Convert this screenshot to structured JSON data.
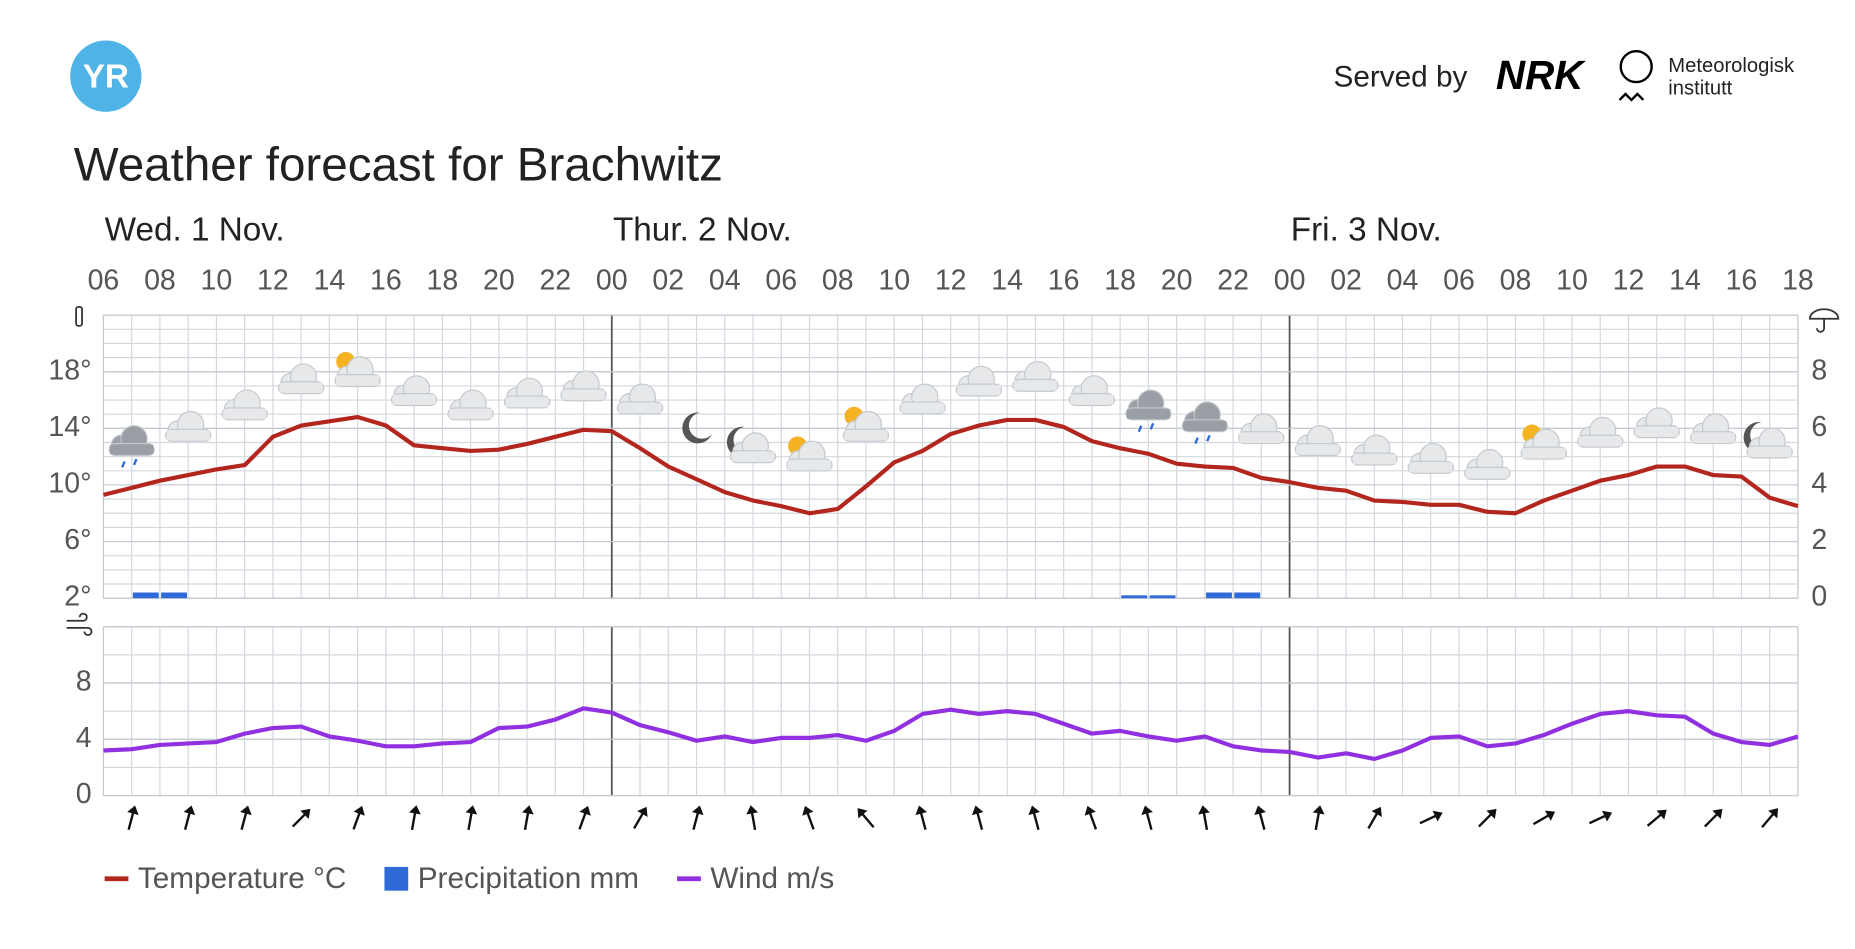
{
  "header": {
    "logo": "YR",
    "served_by": "Served by",
    "partner": "NRK",
    "institute": [
      "Meteorologisk",
      "institutt"
    ]
  },
  "chart_data": {
    "type": "line",
    "title": "Weather forecast for Brachwitz",
    "days": [
      "Wed. 1 Nov.",
      "Thur. 2 Nov.",
      "Fri. 3 Nov."
    ],
    "xticks": [
      "06",
      "08",
      "10",
      "12",
      "14",
      "16",
      "18",
      "20",
      "22",
      "00",
      "02",
      "04",
      "06",
      "08",
      "10",
      "12",
      "14",
      "16",
      "18",
      "20",
      "22",
      "00",
      "02",
      "04",
      "06",
      "08",
      "10",
      "12",
      "14",
      "16",
      "18"
    ],
    "series": [
      {
        "name": "Temperature °C",
        "color": "#b3261e",
        "axis": "y",
        "values": [
          9.3,
          9.8,
          10.3,
          10.7,
          11.1,
          11.4,
          13.4,
          14.2,
          14.5,
          14.8,
          14.2,
          12.8,
          12.6,
          12.4,
          12.5,
          12.9,
          13.4,
          13.9,
          13.8,
          12.6,
          11.3,
          10.4,
          9.5,
          8.9,
          8.5,
          8.0,
          8.3,
          9.9,
          11.6,
          12.4,
          13.6,
          14.2,
          14.6,
          14.6,
          14.1,
          13.1,
          12.6,
          12.2,
          11.5,
          11.3,
          11.2,
          10.5,
          10.2,
          9.8,
          9.6,
          8.9,
          8.8,
          8.6,
          8.6,
          8.1,
          8.0,
          8.9,
          9.6,
          10.3,
          10.7,
          11.3,
          11.3,
          10.7,
          10.6,
          9.1,
          8.5
        ]
      },
      {
        "name": "Precipitation mm",
        "color": "#2f6bd8",
        "axis": "y2",
        "type": "bar",
        "values": [
          0,
          0.2,
          0.2,
          0,
          0,
          0,
          0,
          0,
          0,
          0,
          0,
          0,
          0,
          0,
          0,
          0,
          0,
          0,
          0,
          0,
          0,
          0,
          0,
          0,
          0,
          0,
          0,
          0,
          0,
          0,
          0,
          0,
          0,
          0,
          0,
          0,
          0.1,
          0.1,
          0,
          0.2,
          0.2,
          0,
          0,
          0,
          0,
          0,
          0,
          0,
          0,
          0,
          0,
          0,
          0,
          0,
          0,
          0,
          0,
          0,
          0,
          0
        ]
      },
      {
        "name": "Wind m/s",
        "color": "#9130e0",
        "axis": "wind",
        "values": [
          3.2,
          3.3,
          3.6,
          3.7,
          3.8,
          4.4,
          4.8,
          4.9,
          4.2,
          3.9,
          3.5,
          3.5,
          3.7,
          3.8,
          4.8,
          4.9,
          5.4,
          6.2,
          5.9,
          5.0,
          4.5,
          3.9,
          4.2,
          3.8,
          4.1,
          4.1,
          4.3,
          3.9,
          4.6,
          5.8,
          6.1,
          5.8,
          6.0,
          5.8,
          5.1,
          4.4,
          4.6,
          4.2,
          3.9,
          4.2,
          3.5,
          3.2,
          3.1,
          2.7,
          3.0,
          2.6,
          3.2,
          4.1,
          4.2,
          3.5,
          3.7,
          4.3,
          5.1,
          5.8,
          6.0,
          5.7,
          5.6,
          4.4,
          3.8,
          3.6,
          4.2
        ]
      }
    ],
    "ylim": [
      2,
      22
    ],
    "yticks": [
      {
        "value": 2,
        "label": "2°"
      },
      {
        "value": 6,
        "label": "6°"
      },
      {
        "value": 10,
        "label": "10°"
      },
      {
        "value": 14,
        "label": "14°"
      },
      {
        "value": 18,
        "label": "18°"
      }
    ],
    "y2lim": [
      0,
      10
    ],
    "y2ticks": [
      0,
      2,
      4,
      6,
      8
    ],
    "wind_ylim": [
      0,
      12
    ],
    "wind_yticks": [
      0,
      4,
      8
    ],
    "grid": true
  }
}
